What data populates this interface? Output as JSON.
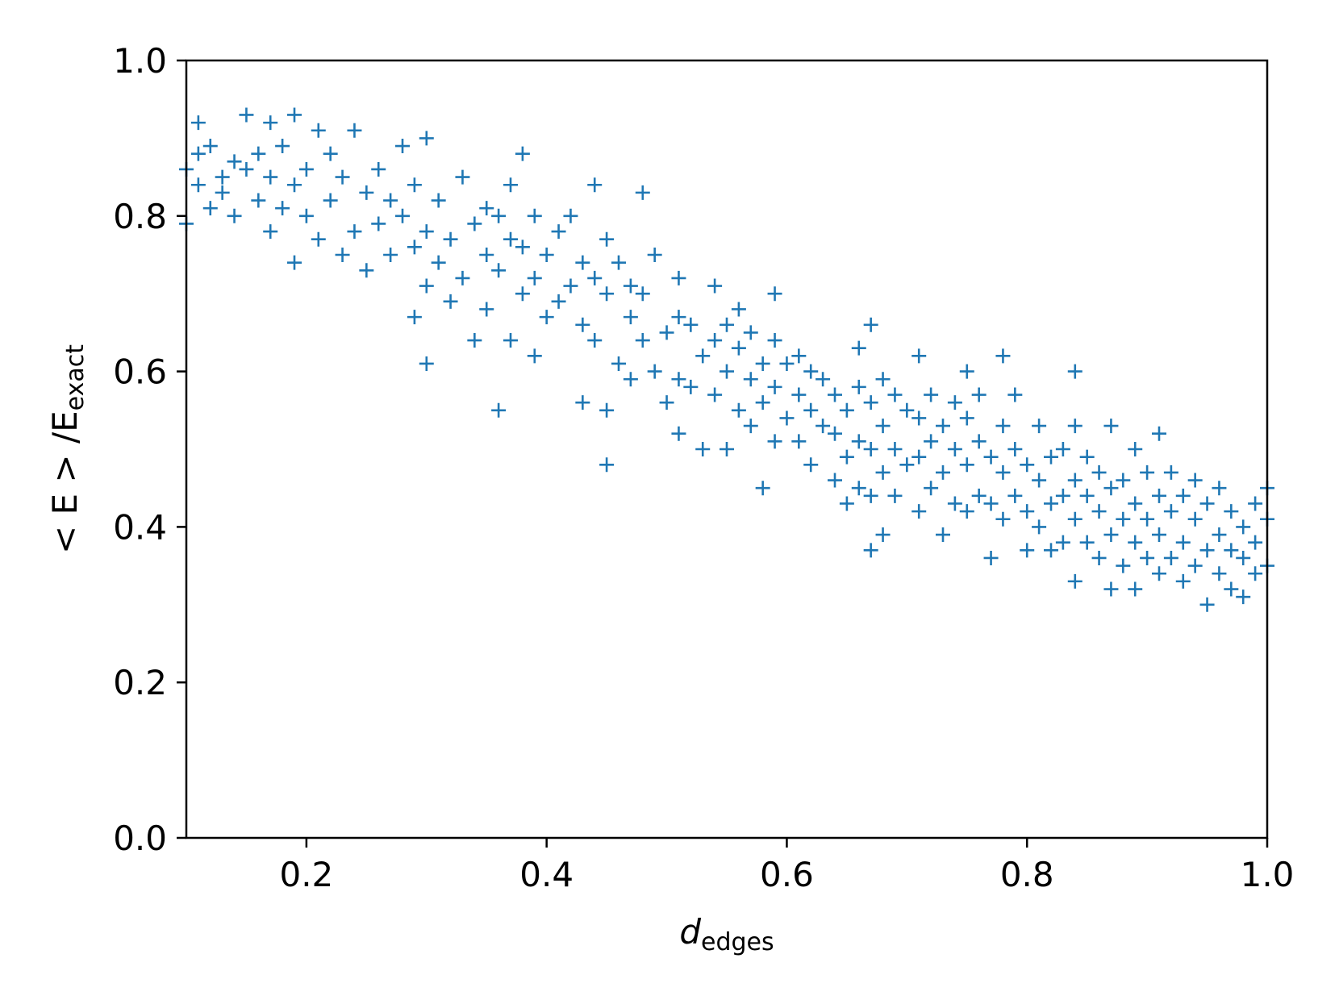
{
  "chart_data": {
    "type": "scatter",
    "title": "",
    "xlabel": {
      "main": "d",
      "sub": "edges"
    },
    "ylabel": {
      "prefix": "< E > /E",
      "sub": "exact"
    },
    "xlim": [
      0.1,
      1.0
    ],
    "ylim": [
      0.0,
      1.0
    ],
    "xticks": [
      0.2,
      0.4,
      0.6,
      0.8,
      1.0
    ],
    "xtick_labels": [
      "0.2",
      "0.4",
      "0.6",
      "0.8",
      "1.0"
    ],
    "yticks": [
      0.0,
      0.2,
      0.4,
      0.6,
      0.8,
      1.0
    ],
    "ytick_labels": [
      "0.0",
      "0.2",
      "0.4",
      "0.6",
      "0.8",
      "1.0"
    ],
    "grid": false,
    "legend": "none",
    "marker": "+",
    "color": "#1f77b4",
    "series": [
      {
        "points": [
          [
            0.1,
            0.79
          ],
          [
            0.1,
            0.86
          ],
          [
            0.11,
            0.92
          ],
          [
            0.11,
            0.84
          ],
          [
            0.11,
            0.88
          ],
          [
            0.12,
            0.81
          ],
          [
            0.12,
            0.89
          ],
          [
            0.13,
            0.85
          ],
          [
            0.13,
            0.83
          ],
          [
            0.14,
            0.8
          ],
          [
            0.14,
            0.87
          ],
          [
            0.15,
            0.93
          ],
          [
            0.15,
            0.86
          ],
          [
            0.16,
            0.82
          ],
          [
            0.16,
            0.88
          ],
          [
            0.17,
            0.78
          ],
          [
            0.17,
            0.85
          ],
          [
            0.17,
            0.92
          ],
          [
            0.18,
            0.81
          ],
          [
            0.18,
            0.89
          ],
          [
            0.19,
            0.74
          ],
          [
            0.19,
            0.84
          ],
          [
            0.19,
            0.93
          ],
          [
            0.2,
            0.8
          ],
          [
            0.2,
            0.86
          ],
          [
            0.21,
            0.77
          ],
          [
            0.21,
            0.91
          ],
          [
            0.22,
            0.82
          ],
          [
            0.22,
            0.88
          ],
          [
            0.23,
            0.75
          ],
          [
            0.23,
            0.85
          ],
          [
            0.24,
            0.78
          ],
          [
            0.24,
            0.91
          ],
          [
            0.25,
            0.73
          ],
          [
            0.25,
            0.83
          ],
          [
            0.26,
            0.79
          ],
          [
            0.26,
            0.86
          ],
          [
            0.27,
            0.75
          ],
          [
            0.27,
            0.82
          ],
          [
            0.28,
            0.8
          ],
          [
            0.28,
            0.89
          ],
          [
            0.29,
            0.67
          ],
          [
            0.29,
            0.76
          ],
          [
            0.29,
            0.84
          ],
          [
            0.3,
            0.61
          ],
          [
            0.3,
            0.71
          ],
          [
            0.3,
            0.78
          ],
          [
            0.3,
            0.9
          ],
          [
            0.31,
            0.74
          ],
          [
            0.31,
            0.82
          ],
          [
            0.32,
            0.69
          ],
          [
            0.32,
            0.77
          ],
          [
            0.33,
            0.85
          ],
          [
            0.33,
            0.72
          ],
          [
            0.34,
            0.64
          ],
          [
            0.34,
            0.79
          ],
          [
            0.35,
            0.68
          ],
          [
            0.35,
            0.75
          ],
          [
            0.35,
            0.81
          ],
          [
            0.36,
            0.55
          ],
          [
            0.36,
            0.73
          ],
          [
            0.36,
            0.8
          ],
          [
            0.37,
            0.64
          ],
          [
            0.37,
            0.77
          ],
          [
            0.37,
            0.84
          ],
          [
            0.38,
            0.7
          ],
          [
            0.38,
            0.76
          ],
          [
            0.38,
            0.88
          ],
          [
            0.39,
            0.62
          ],
          [
            0.39,
            0.72
          ],
          [
            0.39,
            0.8
          ],
          [
            0.4,
            0.67
          ],
          [
            0.4,
            0.75
          ],
          [
            0.41,
            0.69
          ],
          [
            0.41,
            0.78
          ],
          [
            0.42,
            0.71
          ],
          [
            0.42,
            0.8
          ],
          [
            0.43,
            0.56
          ],
          [
            0.43,
            0.66
          ],
          [
            0.43,
            0.74
          ],
          [
            0.44,
            0.64
          ],
          [
            0.44,
            0.72
          ],
          [
            0.44,
            0.84
          ],
          [
            0.45,
            0.48
          ],
          [
            0.45,
            0.55
          ],
          [
            0.45,
            0.7
          ],
          [
            0.45,
            0.77
          ],
          [
            0.46,
            0.61
          ],
          [
            0.46,
            0.74
          ],
          [
            0.47,
            0.59
          ],
          [
            0.47,
            0.67
          ],
          [
            0.47,
            0.71
          ],
          [
            0.48,
            0.64
          ],
          [
            0.48,
            0.7
          ],
          [
            0.48,
            0.83
          ],
          [
            0.49,
            0.6
          ],
          [
            0.49,
            0.75
          ],
          [
            0.5,
            0.56
          ],
          [
            0.5,
            0.65
          ],
          [
            0.51,
            0.52
          ],
          [
            0.51,
            0.59
          ],
          [
            0.51,
            0.67
          ],
          [
            0.51,
            0.72
          ],
          [
            0.52,
            0.58
          ],
          [
            0.52,
            0.66
          ],
          [
            0.53,
            0.5
          ],
          [
            0.53,
            0.62
          ],
          [
            0.54,
            0.57
          ],
          [
            0.54,
            0.64
          ],
          [
            0.54,
            0.71
          ],
          [
            0.55,
            0.5
          ],
          [
            0.55,
            0.6
          ],
          [
            0.55,
            0.66
          ],
          [
            0.56,
            0.55
          ],
          [
            0.56,
            0.63
          ],
          [
            0.56,
            0.68
          ],
          [
            0.57,
            0.53
          ],
          [
            0.57,
            0.59
          ],
          [
            0.57,
            0.65
          ],
          [
            0.58,
            0.45
          ],
          [
            0.58,
            0.56
          ],
          [
            0.58,
            0.61
          ],
          [
            0.59,
            0.51
          ],
          [
            0.59,
            0.58
          ],
          [
            0.59,
            0.64
          ],
          [
            0.59,
            0.7
          ],
          [
            0.6,
            0.54
          ],
          [
            0.6,
            0.61
          ],
          [
            0.61,
            0.51
          ],
          [
            0.61,
            0.57
          ],
          [
            0.61,
            0.62
          ],
          [
            0.62,
            0.48
          ],
          [
            0.62,
            0.55
          ],
          [
            0.62,
            0.6
          ],
          [
            0.63,
            0.53
          ],
          [
            0.63,
            0.59
          ],
          [
            0.64,
            0.46
          ],
          [
            0.64,
            0.52
          ],
          [
            0.64,
            0.57
          ],
          [
            0.65,
            0.43
          ],
          [
            0.65,
            0.49
          ],
          [
            0.65,
            0.55
          ],
          [
            0.66,
            0.45
          ],
          [
            0.66,
            0.51
          ],
          [
            0.66,
            0.58
          ],
          [
            0.66,
            0.63
          ],
          [
            0.67,
            0.37
          ],
          [
            0.67,
            0.44
          ],
          [
            0.67,
            0.5
          ],
          [
            0.67,
            0.56
          ],
          [
            0.67,
            0.66
          ],
          [
            0.68,
            0.39
          ],
          [
            0.68,
            0.47
          ],
          [
            0.68,
            0.53
          ],
          [
            0.68,
            0.59
          ],
          [
            0.69,
            0.44
          ],
          [
            0.69,
            0.5
          ],
          [
            0.69,
            0.57
          ],
          [
            0.7,
            0.48
          ],
          [
            0.7,
            0.55
          ],
          [
            0.71,
            0.42
          ],
          [
            0.71,
            0.49
          ],
          [
            0.71,
            0.54
          ],
          [
            0.71,
            0.62
          ],
          [
            0.72,
            0.45
          ],
          [
            0.72,
            0.51
          ],
          [
            0.72,
            0.57
          ],
          [
            0.73,
            0.39
          ],
          [
            0.73,
            0.47
          ],
          [
            0.73,
            0.53
          ],
          [
            0.74,
            0.43
          ],
          [
            0.74,
            0.5
          ],
          [
            0.74,
            0.56
          ],
          [
            0.75,
            0.42
          ],
          [
            0.75,
            0.48
          ],
          [
            0.75,
            0.54
          ],
          [
            0.75,
            0.6
          ],
          [
            0.76,
            0.44
          ],
          [
            0.76,
            0.51
          ],
          [
            0.76,
            0.57
          ],
          [
            0.77,
            0.36
          ],
          [
            0.77,
            0.43
          ],
          [
            0.77,
            0.49
          ],
          [
            0.78,
            0.41
          ],
          [
            0.78,
            0.47
          ],
          [
            0.78,
            0.53
          ],
          [
            0.78,
            0.62
          ],
          [
            0.79,
            0.44
          ],
          [
            0.79,
            0.5
          ],
          [
            0.79,
            0.57
          ],
          [
            0.8,
            0.37
          ],
          [
            0.8,
            0.42
          ],
          [
            0.8,
            0.48
          ],
          [
            0.81,
            0.4
          ],
          [
            0.81,
            0.46
          ],
          [
            0.81,
            0.53
          ],
          [
            0.82,
            0.37
          ],
          [
            0.82,
            0.43
          ],
          [
            0.82,
            0.49
          ],
          [
            0.83,
            0.38
          ],
          [
            0.83,
            0.44
          ],
          [
            0.83,
            0.5
          ],
          [
            0.84,
            0.33
          ],
          [
            0.84,
            0.41
          ],
          [
            0.84,
            0.46
          ],
          [
            0.84,
            0.53
          ],
          [
            0.84,
            0.6
          ],
          [
            0.85,
            0.38
          ],
          [
            0.85,
            0.44
          ],
          [
            0.85,
            0.49
          ],
          [
            0.86,
            0.36
          ],
          [
            0.86,
            0.42
          ],
          [
            0.86,
            0.47
          ],
          [
            0.87,
            0.32
          ],
          [
            0.87,
            0.39
          ],
          [
            0.87,
            0.45
          ],
          [
            0.87,
            0.53
          ],
          [
            0.88,
            0.35
          ],
          [
            0.88,
            0.41
          ],
          [
            0.88,
            0.46
          ],
          [
            0.89,
            0.32
          ],
          [
            0.89,
            0.38
          ],
          [
            0.89,
            0.43
          ],
          [
            0.89,
            0.5
          ],
          [
            0.9,
            0.36
          ],
          [
            0.9,
            0.41
          ],
          [
            0.9,
            0.47
          ],
          [
            0.91,
            0.34
          ],
          [
            0.91,
            0.39
          ],
          [
            0.91,
            0.44
          ],
          [
            0.91,
            0.52
          ],
          [
            0.92,
            0.36
          ],
          [
            0.92,
            0.42
          ],
          [
            0.92,
            0.47
          ],
          [
            0.93,
            0.33
          ],
          [
            0.93,
            0.38
          ],
          [
            0.93,
            0.44
          ],
          [
            0.94,
            0.35
          ],
          [
            0.94,
            0.41
          ],
          [
            0.94,
            0.46
          ],
          [
            0.95,
            0.3
          ],
          [
            0.95,
            0.37
          ],
          [
            0.95,
            0.43
          ],
          [
            0.96,
            0.34
          ],
          [
            0.96,
            0.39
          ],
          [
            0.96,
            0.45
          ],
          [
            0.97,
            0.32
          ],
          [
            0.97,
            0.37
          ],
          [
            0.97,
            0.42
          ],
          [
            0.98,
            0.31
          ],
          [
            0.98,
            0.36
          ],
          [
            0.98,
            0.4
          ],
          [
            0.99,
            0.34
          ],
          [
            0.99,
            0.38
          ],
          [
            0.99,
            0.43
          ],
          [
            1.0,
            0.35
          ],
          [
            1.0,
            0.41
          ],
          [
            1.0,
            0.45
          ]
        ]
      }
    ]
  }
}
